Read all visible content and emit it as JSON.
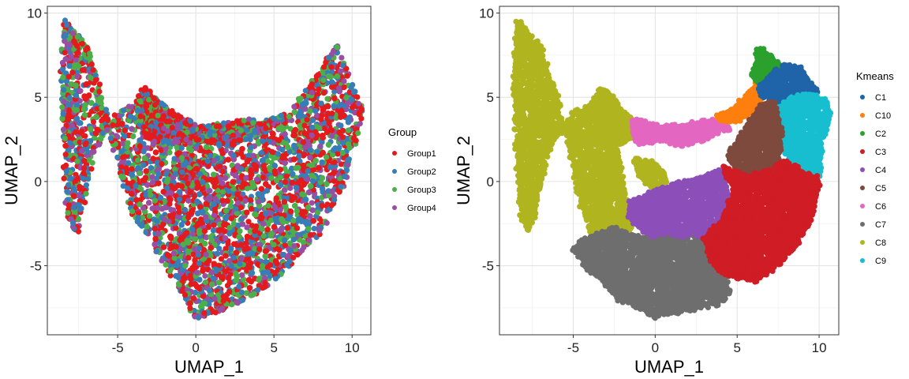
{
  "chart_data": [
    {
      "type": "scatter",
      "xlabel": "UMAP_1",
      "ylabel": "UMAP_2",
      "xlim": [
        -9.5,
        11.2
      ],
      "ylim": [
        -9.1,
        10.4
      ],
      "x_ticks": [
        -5,
        0,
        5,
        10
      ],
      "y_ticks": [
        -5,
        0,
        5,
        10
      ],
      "x_tick_labels": [
        "-5",
        "0",
        "5",
        "10"
      ],
      "y_tick_labels": [
        "-5",
        "0",
        "5",
        "10"
      ],
      "grid": true,
      "legend_title": "Group",
      "legend_position": "right",
      "series": [
        {
          "name": "Group1",
          "color": "#e41a1c"
        },
        {
          "name": "Group2",
          "color": "#377eb8"
        },
        {
          "name": "Group3",
          "color": "#4daf4a"
        },
        {
          "name": "Group4",
          "color": "#984ea3"
        }
      ],
      "regions": [
        {
          "series": "mixed",
          "x": [
            -8.6,
            -8.4,
            -7.0,
            -6.2,
            -5.2,
            -4.2,
            -2.2,
            0.0,
            2.0,
            4.0,
            5.8,
            8.0,
            9.5,
            10.6,
            10.4,
            9.0,
            8.0,
            6.0,
            4.5,
            3.0,
            1.5,
            0.3,
            -1.5,
            -2.6,
            -3.8,
            -5.0,
            -6.5,
            -7.6,
            -8.2,
            -8.5
          ],
          "y": [
            6.0,
            9.6,
            8.0,
            5.5,
            2.0,
            -1.5,
            -4.5,
            -8.0,
            -7.5,
            -6.5,
            -5.0,
            -3.0,
            0.0,
            4.0,
            4.6,
            8.0,
            6.5,
            4.0,
            3.5,
            3.0,
            2.5,
            3.0,
            3.5,
            3.6,
            4.5,
            4.0,
            2.0,
            -3.0,
            -2.0,
            3.0
          ]
        },
        {
          "series": "mixed",
          "x": [
            -3.8,
            -3.3,
            -2.5,
            -1.2,
            0.5,
            2.0,
            3.5,
            4.5,
            3.2,
            1.8,
            0.4,
            -1.0,
            -2.2,
            -3.2
          ],
          "y": [
            4.6,
            5.5,
            4.8,
            3.8,
            3.2,
            3.4,
            3.6,
            3.2,
            2.6,
            2.2,
            2.4,
            2.4,
            2.3,
            2.8
          ]
        },
        {
          "series": "mixed",
          "x": [
            -1.0,
            -0.2,
            0.3,
            0.6,
            -0.2,
            -0.8
          ],
          "y": [
            1.3,
            1.1,
            0.6,
            0.0,
            -0.4,
            0.4
          ]
        }
      ]
    },
    {
      "type": "scatter",
      "xlabel": "UMAP_1",
      "ylabel": "UMAP_2",
      "xlim": [
        -9.5,
        11.2
      ],
      "ylim": [
        -9.1,
        10.4
      ],
      "x_ticks": [
        -5,
        0,
        5,
        10
      ],
      "y_ticks": [
        -5,
        0,
        5,
        10
      ],
      "x_tick_labels": [
        "-5",
        "0",
        "5",
        "10"
      ],
      "y_tick_labels": [
        "-5",
        "0",
        "5",
        "10"
      ],
      "grid": true,
      "legend_title": "Kmeans",
      "legend_position": "right",
      "series": [
        {
          "name": "C1",
          "color": "#1f63a8"
        },
        {
          "name": "C10",
          "color": "#ff7f0e"
        },
        {
          "name": "C2",
          "color": "#2ca02c"
        },
        {
          "name": "C3",
          "color": "#d01c24"
        },
        {
          "name": "C4",
          "color": "#8c4fb8"
        },
        {
          "name": "C5",
          "color": "#7f4a3e"
        },
        {
          "name": "C6",
          "color": "#e366c0"
        },
        {
          "name": "C7",
          "color": "#6e6e6e"
        },
        {
          "name": "C8",
          "color": "#b0b41e"
        },
        {
          "name": "C9",
          "color": "#17becf"
        }
      ],
      "regions": [
        {
          "series": "C8",
          "x": [
            -8.6,
            -8.4,
            -7.0,
            -6.0,
            -5.0,
            -4.5,
            -3.8,
            -3.0,
            -2.0,
            -1.5,
            -2.6,
            -3.8,
            -5.0,
            -6.5,
            -7.6,
            -8.2,
            -8.5
          ],
          "y": [
            6.0,
            9.6,
            8.0,
            5.0,
            1.0,
            -1.5,
            -3.2,
            -3.8,
            -3.4,
            -2.6,
            3.6,
            4.5,
            4.0,
            2.0,
            -3.0,
            -2.0,
            3.0
          ]
        },
        {
          "series": "C8",
          "x": [
            -3.8,
            -3.3,
            -2.7,
            -2.0,
            -1.3,
            -1.3,
            -2.2,
            -3.2
          ],
          "y": [
            4.6,
            5.5,
            5.0,
            4.2,
            3.6,
            2.6,
            2.3,
            2.8
          ]
        },
        {
          "series": "C8",
          "x": [
            -1.2,
            -0.3,
            0.4,
            0.6,
            -0.2,
            -0.9
          ],
          "y": [
            1.3,
            1.1,
            0.6,
            0.0,
            -0.4,
            0.3
          ]
        },
        {
          "series": "C7",
          "x": [
            -5.0,
            -3.8,
            -2.5,
            -1.2,
            0.3,
            1.5,
            2.5,
            3.2,
            3.8,
            4.5,
            4.0,
            2.0,
            0.0,
            -2.2,
            -4.2
          ],
          "y": [
            -3.9,
            -3.3,
            -2.8,
            -3.3,
            -3.4,
            -3.2,
            -3.0,
            -3.6,
            -4.5,
            -6.5,
            -7.2,
            -7.6,
            -8.0,
            -7.0,
            -5.0
          ]
        },
        {
          "series": "C4",
          "x": [
            -1.5,
            0.0,
            1.5,
            3.0,
            4.0,
            4.5,
            4.0,
            3.2,
            2.3,
            1.6,
            0.7,
            -0.2,
            -1.0,
            -1.6
          ],
          "y": [
            -1.2,
            -0.6,
            -0.1,
            0.3,
            0.7,
            -0.8,
            -2.4,
            -3.3,
            -3.0,
            -3.2,
            -3.0,
            -3.2,
            -2.6,
            -2.0
          ]
        },
        {
          "series": "C6",
          "x": [
            -1.3,
            -0.5,
            0.5,
            2.0,
            3.5,
            4.5,
            3.2,
            1.8,
            0.4,
            -1.0,
            -1.3
          ],
          "y": [
            3.6,
            3.4,
            3.2,
            3.4,
            3.6,
            3.2,
            2.6,
            2.2,
            2.4,
            2.3,
            2.9
          ]
        },
        {
          "series": "C10",
          "x": [
            3.8,
            5.0,
            5.8,
            6.5,
            6.8,
            6.3,
            5.5,
            4.6
          ],
          "y": [
            3.8,
            4.5,
            5.2,
            6.3,
            5.6,
            4.5,
            3.9,
            3.5
          ]
        },
        {
          "series": "C2",
          "x": [
            6.0,
            6.3,
            7.2,
            7.6,
            7.2,
            6.6,
            6.2
          ],
          "y": [
            6.4,
            8.0,
            7.2,
            6.8,
            6.2,
            6.0,
            6.0
          ]
        },
        {
          "series": "C1",
          "x": [
            6.4,
            7.2,
            8.0,
            9.0,
            9.8,
            9.3,
            8.5,
            7.5,
            6.9,
            6.5
          ],
          "y": [
            5.6,
            6.4,
            6.9,
            6.6,
            5.3,
            4.7,
            4.4,
            4.6,
            5.0,
            5.2
          ]
        },
        {
          "series": "C9",
          "x": [
            7.6,
            8.5,
            9.5,
            10.4,
            10.6,
            10.2,
            10.0,
            9.2,
            8.3,
            7.7,
            7.2
          ],
          "y": [
            4.4,
            5.0,
            5.1,
            4.8,
            4.0,
            2.5,
            0.4,
            0.2,
            1.0,
            2.5,
            3.5
          ]
        },
        {
          "series": "C5",
          "x": [
            4.5,
            5.5,
            6.4,
            7.2,
            7.7,
            7.5,
            7.0,
            6.5,
            5.5,
            4.8
          ],
          "y": [
            1.6,
            3.2,
            4.4,
            4.7,
            3.0,
            1.2,
            0.5,
            0.3,
            0.5,
            1.0
          ]
        },
        {
          "series": "C3",
          "x": [
            4.2,
            5.5,
            7.0,
            8.0,
            9.2,
            10.0,
            9.6,
            8.6,
            7.3,
            6.0,
            4.5,
            3.6,
            3.0,
            4.2,
            4.8
          ],
          "y": [
            0.8,
            0.3,
            0.6,
            1.2,
            0.4,
            0.2,
            -2.0,
            -3.8,
            -5.1,
            -5.9,
            -5.5,
            -5.0,
            -3.4,
            -2.2,
            -0.5
          ]
        }
      ]
    }
  ]
}
